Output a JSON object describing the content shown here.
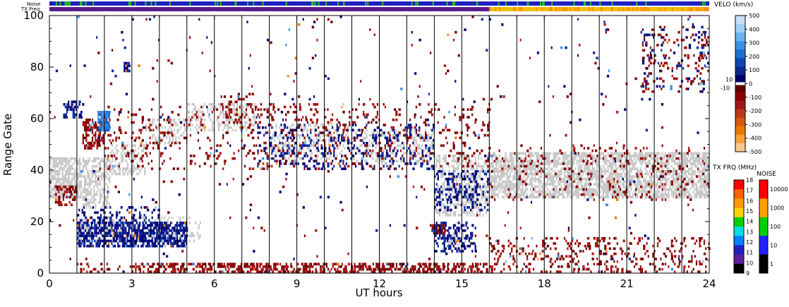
{
  "strip_labels": {
    "noise": "Noise",
    "txfreq": "TX Freq"
  },
  "chart_data": {
    "type": "heatmap",
    "xlabel": "UT hours",
    "ylabel": "Range Gate",
    "xlim": [
      0,
      24
    ],
    "ylim": [
      0,
      100
    ],
    "x_ticks": [
      0,
      3,
      6,
      9,
      12,
      15,
      18,
      21,
      24
    ],
    "y_ticks": [
      0,
      20,
      40,
      60,
      80,
      100
    ],
    "hour_grid": true,
    "colors": {
      "ground_scatter": "#c8c8c8",
      "strip_noise_main": "#2020c0",
      "strip_noise_green": "#20c020",
      "strip_tx_early": "#5a1a8a",
      "strip_tx_late": "#f0c000",
      "strip_tx_late_alt": "#ff8c00"
    },
    "regions": [
      {
        "kind": "ground",
        "x": [
          0.0,
          1.2
        ],
        "y": [
          29,
          45
        ],
        "density": 0.75
      },
      {
        "kind": "ground",
        "x": [
          1.2,
          2.2
        ],
        "y": [
          25,
          45
        ],
        "density": 0.55
      },
      {
        "kind": "ground",
        "x": [
          2.2,
          3.5
        ],
        "y": [
          38,
          50
        ],
        "density": 0.4
      },
      {
        "kind": "ground",
        "x": [
          3.5,
          5.0
        ],
        "y": [
          50,
          60
        ],
        "density": 0.35
      },
      {
        "kind": "ground",
        "x": [
          5.0,
          7.5
        ],
        "y": [
          55,
          66
        ],
        "density": 0.35
      },
      {
        "kind": "ground",
        "x": [
          8.0,
          11.0
        ],
        "y": [
          44,
          58
        ],
        "density": 0.3
      },
      {
        "kind": "ground",
        "x": [
          11.0,
          14.0
        ],
        "y": [
          42,
          56
        ],
        "density": 0.3
      },
      {
        "kind": "ground",
        "x": [
          14.0,
          16.0
        ],
        "y": [
          22,
          46
        ],
        "density": 0.45
      },
      {
        "kind": "ground",
        "x": [
          16.0,
          24.0
        ],
        "y": [
          29,
          47
        ],
        "density": 0.7
      },
      {
        "kind": "ground",
        "x": [
          1.0,
          5.5
        ],
        "y": [
          12,
          22
        ],
        "density": 0.3
      },
      {
        "kind": "ground",
        "x": [
          14.5,
          15.2
        ],
        "y": [
          10,
          16
        ],
        "density": 0.5
      },
      {
        "kind": "neg",
        "x": [
          0.2,
          1.0
        ],
        "y": [
          26,
          34
        ],
        "density": 0.45
      },
      {
        "kind": "neg",
        "x": [
          1.2,
          2.0
        ],
        "y": [
          48,
          60
        ],
        "density": 0.5
      },
      {
        "kind": "neg",
        "x": [
          2.0,
          7.5
        ],
        "y": [
          40,
          65
        ],
        "density": 0.08
      },
      {
        "kind": "neg",
        "x": [
          7.5,
          16.0
        ],
        "y": [
          40,
          66
        ],
        "density": 0.1
      },
      {
        "kind": "neg",
        "x": [
          13.9,
          14.4
        ],
        "y": [
          15,
          19
        ],
        "density": 0.9
      },
      {
        "kind": "neg",
        "x": [
          16.0,
          24.0
        ],
        "y": [
          28,
          50
        ],
        "density": 0.07
      },
      {
        "kind": "neg",
        "x": [
          1.0,
          3.0
        ],
        "y": [
          0,
          4
        ],
        "density": 0.12
      },
      {
        "kind": "neg",
        "x": [
          3.0,
          16.0
        ],
        "y": [
          0,
          4
        ],
        "density": 0.5
      },
      {
        "kind": "neg",
        "x": [
          16.0,
          24.0
        ],
        "y": [
          0,
          14
        ],
        "density": 0.18
      },
      {
        "kind": "neg",
        "x": [
          0.0,
          24.0
        ],
        "y": [
          0,
          100
        ],
        "density": 0.006
      },
      {
        "kind": "neg",
        "x": [
          21.5,
          24.0
        ],
        "y": [
          70,
          96
        ],
        "density": 0.12
      },
      {
        "kind": "neg",
        "x": [
          6.0,
          7.5
        ],
        "y": [
          58,
          70
        ],
        "density": 0.15
      },
      {
        "kind": "pos",
        "x": [
          1.0,
          5.0
        ],
        "y": [
          10,
          20
        ],
        "density": 0.65
      },
      {
        "kind": "pos",
        "x": [
          1.0,
          4.0
        ],
        "y": [
          20,
          26
        ],
        "density": 0.2
      },
      {
        "kind": "pos",
        "x": [
          14.0,
          15.5
        ],
        "y": [
          8,
          20
        ],
        "density": 0.35
      },
      {
        "kind": "pos",
        "x": [
          14.0,
          16.0
        ],
        "y": [
          24,
          40
        ],
        "density": 0.25
      },
      {
        "kind": "pos",
        "x": [
          7.5,
          14.0
        ],
        "y": [
          40,
          58
        ],
        "density": 0.15
      },
      {
        "kind": "pos",
        "x": [
          0.0,
          24.0
        ],
        "y": [
          0,
          100
        ],
        "density": 0.004
      },
      {
        "kind": "pos",
        "x": [
          21.5,
          24.0
        ],
        "y": [
          70,
          96
        ],
        "density": 0.06
      },
      {
        "kind": "pos",
        "x": [
          0.5,
          1.2
        ],
        "y": [
          60,
          67
        ],
        "density": 0.5
      },
      {
        "kind": "pos",
        "x": [
          2.7,
          2.95
        ],
        "y": [
          78,
          82
        ],
        "density": 0.9
      },
      {
        "kind": "blue_patch",
        "x": [
          1.75,
          2.2
        ],
        "y": [
          55,
          63
        ],
        "density": 0.9
      }
    ],
    "velocity_colorbar": {
      "title": "VELO (km/s)",
      "ticks": [
        "500",
        "400",
        "300",
        "200",
        "100",
        "0",
        "-100",
        "-200",
        "-300",
        "-400",
        "-500"
      ],
      "inner_labels": [
        "10",
        "-10"
      ],
      "colors": [
        "#c8e0f8",
        "#a0cff5",
        "#6fb2ee",
        "#3d8fe0",
        "#1f6fd0",
        "#1146b0",
        "#0a2a8a",
        "#000066",
        "#600000",
        "#8a0000",
        "#a01818",
        "#b83a1a",
        "#d05a10",
        "#e87a00",
        "#f4a040",
        "#f8c890"
      ]
    },
    "txfreq_colorbar": {
      "title": "TX FRQ (MHz)",
      "ticks": [
        "18",
        "17",
        "16",
        "15",
        "14",
        "13",
        "12",
        "11",
        "10",
        "9"
      ],
      "colors": [
        "#ff0000",
        "#ff6000",
        "#ff9900",
        "#ffd000",
        "#00d000",
        "#00e0e0",
        "#0080ff",
        "#2020c0",
        "#6020a0",
        "#000000"
      ]
    },
    "noise_colorbar": {
      "title": "NOISE",
      "ticks": [
        "10000",
        "1000",
        "100",
        "10",
        "1"
      ],
      "colors": [
        "#ff0000",
        "#ffa000",
        "#00d000",
        "#2020ff",
        "#000000"
      ]
    }
  }
}
